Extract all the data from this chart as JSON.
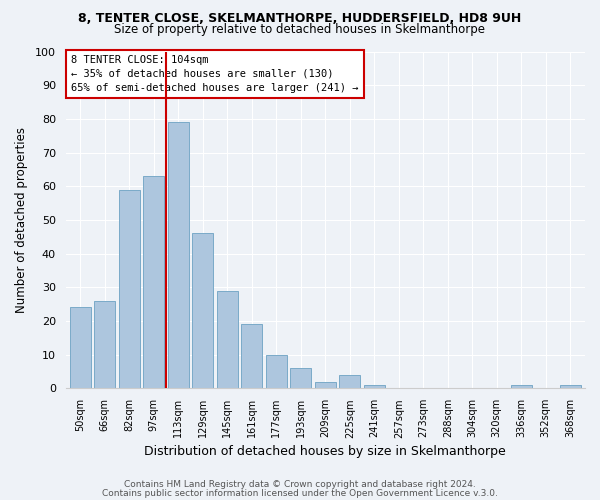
{
  "title1": "8, TENTER CLOSE, SKELMANTHORPE, HUDDERSFIELD, HD8 9UH",
  "title2": "Size of property relative to detached houses in Skelmanthorpe",
  "xlabel": "Distribution of detached houses by size in Skelmanthorpe",
  "ylabel": "Number of detached properties",
  "bar_labels": [
    "50sqm",
    "66sqm",
    "82sqm",
    "97sqm",
    "113sqm",
    "129sqm",
    "145sqm",
    "161sqm",
    "177sqm",
    "193sqm",
    "209sqm",
    "225sqm",
    "241sqm",
    "257sqm",
    "273sqm",
    "288sqm",
    "304sqm",
    "320sqm",
    "336sqm",
    "352sqm",
    "368sqm"
  ],
  "bar_values": [
    24,
    26,
    59,
    63,
    79,
    46,
    29,
    19,
    10,
    6,
    2,
    4,
    1,
    0,
    0,
    0,
    0,
    0,
    1,
    0,
    1
  ],
  "bar_color": "#adc6de",
  "bar_edge_color": "#7aaac8",
  "vline_color": "#cc0000",
  "annotation_title": "8 TENTER CLOSE: 104sqm",
  "annotation_line1": "← 35% of detached houses are smaller (130)",
  "annotation_line2": "65% of semi-detached houses are larger (241) →",
  "annotation_box_facecolor": "#ffffff",
  "annotation_box_edgecolor": "#cc0000",
  "ylim": [
    0,
    100
  ],
  "yticks": [
    0,
    10,
    20,
    30,
    40,
    50,
    60,
    70,
    80,
    90,
    100
  ],
  "footer1": "Contains HM Land Registry data © Crown copyright and database right 2024.",
  "footer2": "Contains public sector information licensed under the Open Government Licence v.3.0.",
  "bg_color": "#eef2f7",
  "plot_bg_color": "#eef2f7",
  "grid_color": "#ffffff"
}
